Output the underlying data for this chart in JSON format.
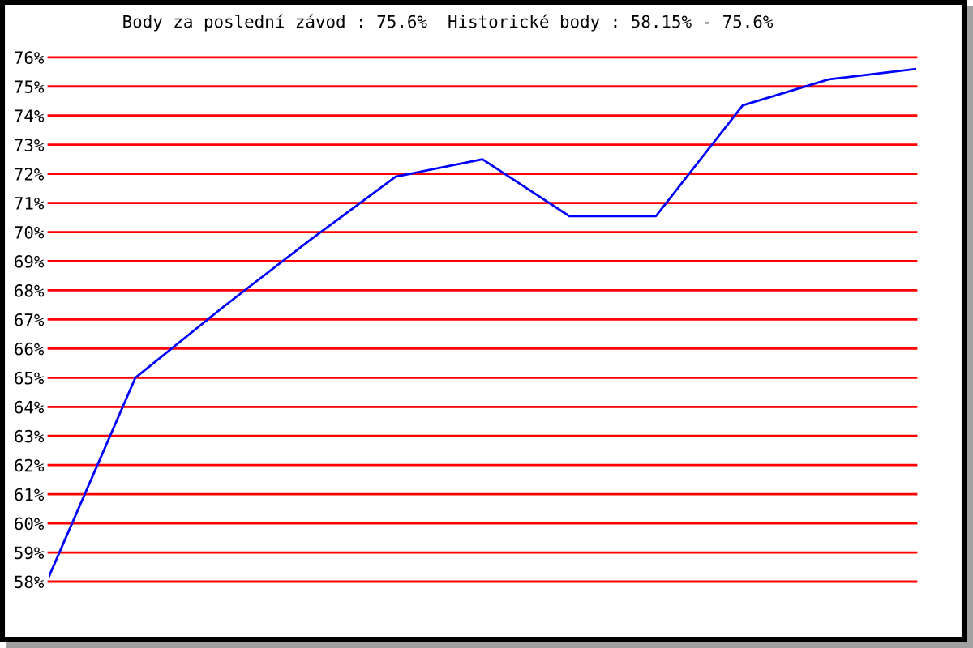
{
  "chart_data": {
    "type": "line",
    "title": "Body za poslední závod : 75.6%  Historické body : 58.15% - 75.6%",
    "categories": [
      null,
      null,
      null,
      null,
      null,
      null,
      null,
      null,
      null,
      null,
      null
    ],
    "series": [
      {
        "color": "#0000ff",
        "values": [
          58.15,
          65.0,
          67.4,
          69.7,
          71.9,
          72.5,
          70.55,
          70.55,
          74.35,
          75.25,
          75.6
        ]
      }
    ],
    "ylim": [
      58,
      76
    ],
    "yticks": [
      {
        "value": 58,
        "label": "58%"
      },
      {
        "value": 59,
        "label": "59%"
      },
      {
        "value": 60,
        "label": "60%"
      },
      {
        "value": 61,
        "label": "61%"
      },
      {
        "value": 62,
        "label": "62%"
      },
      {
        "value": 63,
        "label": "63%"
      },
      {
        "value": 64,
        "label": "64%"
      },
      {
        "value": 65,
        "label": "65%"
      },
      {
        "value": 66,
        "label": "66%"
      },
      {
        "value": 67,
        "label": "67%"
      },
      {
        "value": 68,
        "label": "68%"
      },
      {
        "value": 69,
        "label": "69%"
      },
      {
        "value": 70,
        "label": "70%"
      },
      {
        "value": 71,
        "label": "71%"
      },
      {
        "value": 72,
        "label": "72%"
      },
      {
        "value": 73,
        "label": "73%"
      },
      {
        "value": 74,
        "label": "74%"
      },
      {
        "value": 75,
        "label": "75%"
      },
      {
        "value": 76,
        "label": "76%"
      }
    ],
    "grid": "y",
    "tick_labels": "y",
    "legend": false,
    "marker": "none",
    "line_style": "solid"
  }
}
